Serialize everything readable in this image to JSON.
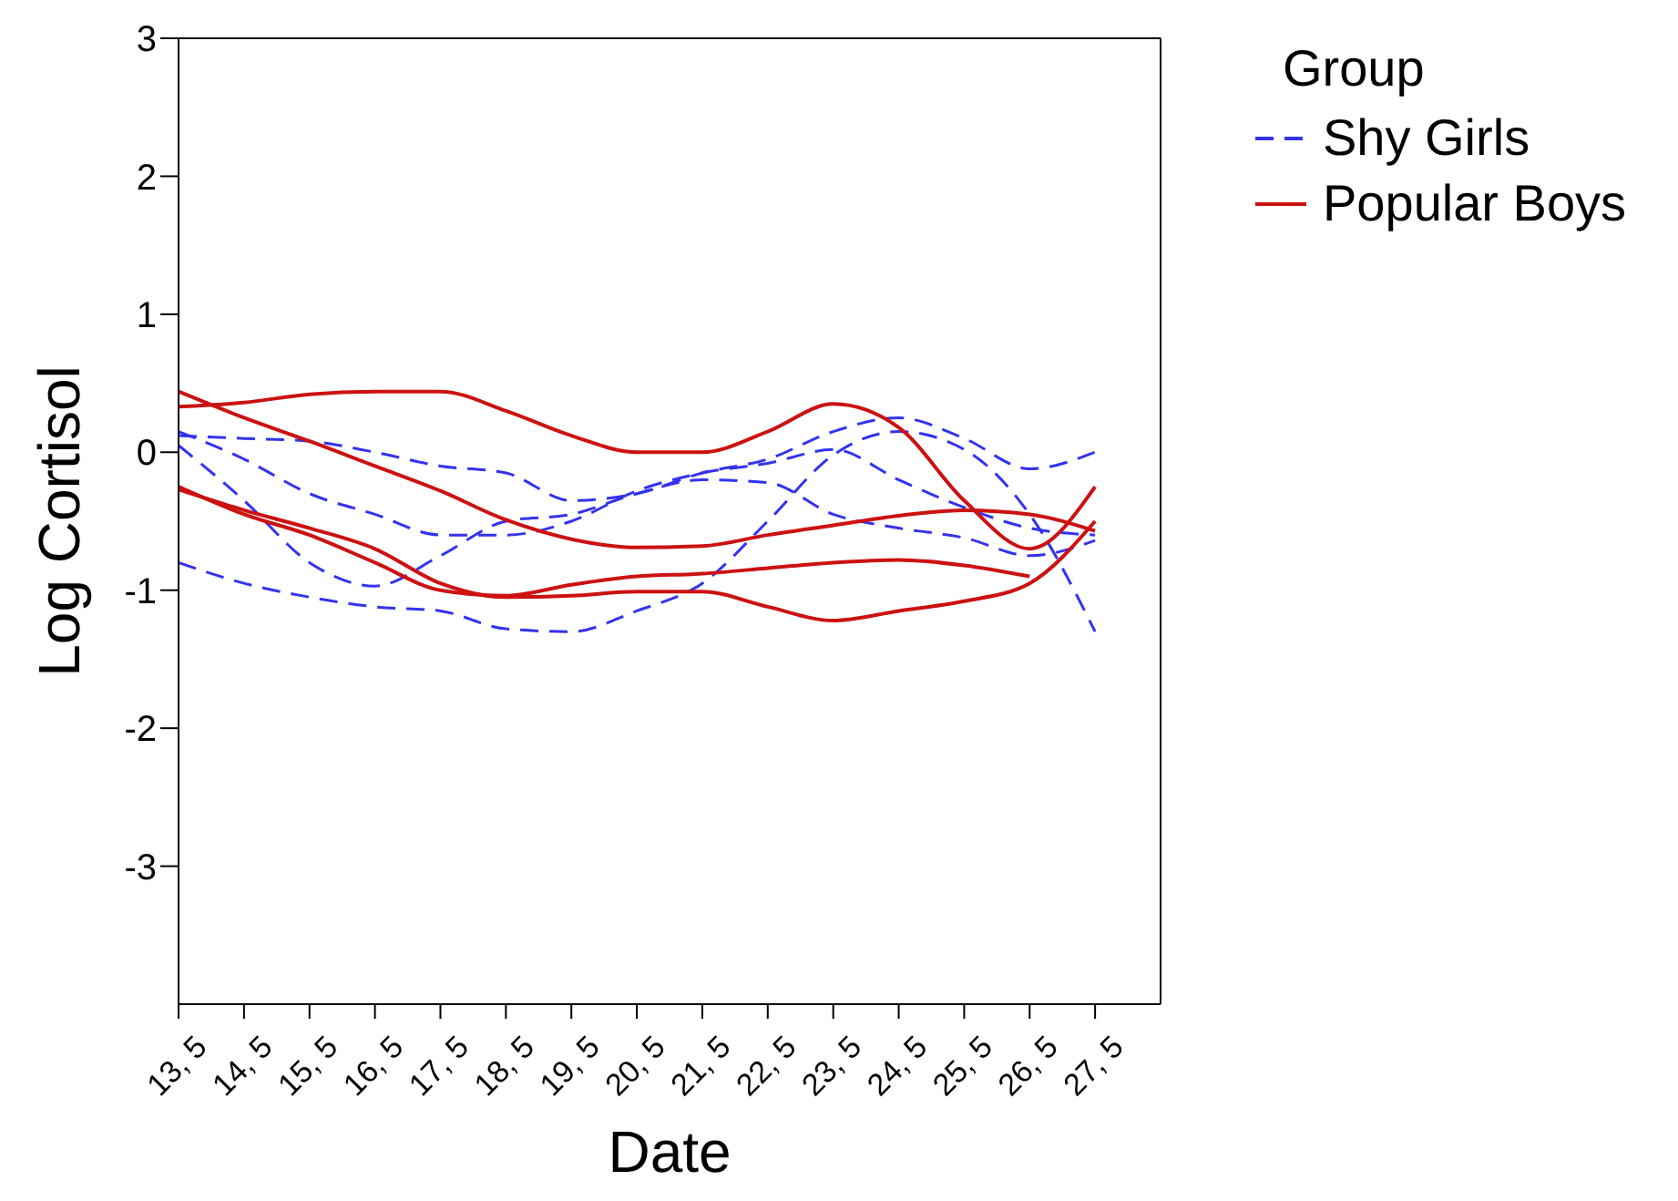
{
  "chart_data": {
    "type": "line",
    "xlabel": "Date",
    "ylabel": "Log Cortisol",
    "legend_title": "Group",
    "legend": "top right",
    "marker": "none",
    "xlim": [
      "--05-13",
      "--05-28"
    ],
    "ylim": [
      -4,
      3
    ],
    "yticks": [
      -3,
      -2,
      -1,
      0,
      1,
      2,
      3
    ],
    "xticks": [
      {
        "value": "--05-13",
        "label": "13, 5"
      },
      {
        "value": "--05-14",
        "label": "14, 5"
      },
      {
        "value": "--05-15",
        "label": "15, 5"
      },
      {
        "value": "--05-16",
        "label": "16, 5"
      },
      {
        "value": "--05-17",
        "label": "17, 5"
      },
      {
        "value": "--05-18",
        "label": "18, 5"
      },
      {
        "value": "--05-19",
        "label": "19, 5"
      },
      {
        "value": "--05-20",
        "label": "20, 5"
      },
      {
        "value": "--05-21",
        "label": "21, 5"
      },
      {
        "value": "--05-22",
        "label": "22, 5"
      },
      {
        "value": "--05-23",
        "label": "23, 5"
      },
      {
        "value": "--05-24",
        "label": "24, 5"
      },
      {
        "value": "--05-25",
        "label": "25, 5"
      },
      {
        "value": "--05-26",
        "label": "26, 5"
      },
      {
        "value": "--05-27",
        "label": "27, 5"
      }
    ],
    "series": [
      {
        "name": "Shy Girls",
        "color": "#3333ee",
        "line_style": "dashed",
        "x": [
          "--05-13",
          "--05-14",
          "--05-15",
          "--05-16",
          "--05-17",
          "--05-18",
          "--05-19",
          "--05-20",
          "--05-21",
          "--05-22",
          "--05-23",
          "--05-24",
          "--05-25",
          "--05-26",
          "--05-27"
        ],
        "values": [
          0.12,
          0.1,
          0.08,
          0.0,
          -0.1,
          -0.15,
          -0.35,
          -0.3,
          -0.15,
          -0.05,
          0.15,
          0.25,
          0.1,
          -0.12,
          0.0
        ]
      },
      {
        "color": "#3333ee",
        "line_style": "dashed",
        "x": [
          "--05-13",
          "--05-14",
          "--05-15",
          "--05-16",
          "--05-17",
          "--05-18",
          "--05-19",
          "--05-20",
          "--05-21",
          "--05-22",
          "--05-23",
          "--05-24",
          "--05-25",
          "--05-26",
          "--05-27"
        ],
        "values": [
          -0.8,
          -0.95,
          -1.05,
          -1.12,
          -1.15,
          -1.28,
          -1.3,
          -1.15,
          -0.95,
          -0.5,
          -0.02,
          0.15,
          0.02,
          -0.45,
          -1.3
        ]
      },
      {
        "color": "#3333ee",
        "line_style": "dashed",
        "x": [
          "--05-13",
          "--05-14",
          "--05-15",
          "--05-16",
          "--05-17",
          "--05-18",
          "--05-19",
          "--05-20",
          "--05-21",
          "--05-22",
          "--05-23",
          "--05-24",
          "--05-25",
          "--05-26",
          "--05-27"
        ],
        "values": [
          0.05,
          -0.35,
          -0.8,
          -0.97,
          -0.75,
          -0.5,
          -0.45,
          -0.3,
          -0.2,
          -0.22,
          -0.45,
          -0.55,
          -0.62,
          -0.75,
          -0.64
        ]
      },
      {
        "color": "#3333ee",
        "line_style": "dashed",
        "x": [
          "--05-13",
          "--05-14",
          "--05-15",
          "--05-16",
          "--05-17",
          "--05-18",
          "--05-19",
          "--05-20",
          "--05-21",
          "--05-22",
          "--05-23",
          "--05-24",
          "--05-25",
          "--05-26",
          "--05-27"
        ],
        "values": [
          0.15,
          -0.05,
          -0.3,
          -0.45,
          -0.6,
          -0.6,
          -0.5,
          -0.28,
          -0.15,
          -0.08,
          0.02,
          -0.2,
          -0.4,
          -0.55,
          -0.6
        ]
      },
      {
        "name": "Popular Boys",
        "color": "#cc1111",
        "line_style": "solid",
        "x": [
          "--05-13",
          "--05-14",
          "--05-15",
          "--05-16",
          "--05-17",
          "--05-18",
          "--05-19",
          "--05-20",
          "--05-21",
          "--05-22",
          "--05-23",
          "--05-24",
          "--05-25",
          "--05-26",
          "--05-27"
        ],
        "values": [
          0.33,
          0.36,
          0.42,
          0.44,
          0.44,
          0.3,
          0.12,
          0.0,
          0.0,
          0.15,
          0.35,
          0.18,
          -0.35,
          -0.7,
          -0.25
        ]
      },
      {
        "color": "#cc1111",
        "line_style": "solid",
        "x": [
          "--05-13",
          "--05-14",
          "--05-15",
          "--05-16",
          "--05-17",
          "--05-18",
          "--05-19",
          "--05-20",
          "--05-21",
          "--05-22",
          "--05-23",
          "--05-24",
          "--05-25",
          "--05-26",
          "--05-27"
        ],
        "values": [
          0.44,
          0.25,
          0.08,
          -0.1,
          -0.28,
          -0.49,
          -0.63,
          -0.69,
          -0.68,
          -0.6,
          -0.53,
          -0.46,
          -0.42,
          -0.45,
          -0.57
        ]
      },
      {
        "color": "#cc1111",
        "line_style": "solid",
        "x": [
          "--05-13",
          "--05-14",
          "--05-15",
          "--05-16",
          "--05-17",
          "--05-18",
          "--05-19",
          "--05-20",
          "--05-21",
          "--05-22",
          "--05-23",
          "--05-24",
          "--05-25",
          "--05-26"
        ],
        "values": [
          -0.25,
          -0.45,
          -0.6,
          -0.8,
          -1.0,
          -1.04,
          -0.96,
          -0.9,
          -0.88,
          -0.84,
          -0.8,
          -0.78,
          -0.82,
          -0.9
        ]
      },
      {
        "color": "#cc1111",
        "line_style": "solid",
        "x": [
          "--05-13",
          "--05-14",
          "--05-15",
          "--05-16",
          "--05-17",
          "--05-18",
          "--05-19",
          "--05-20",
          "--05-21",
          "--05-22",
          "--05-23",
          "--05-24",
          "--05-25",
          "--05-26",
          "--05-27"
        ],
        "values": [
          -0.27,
          -0.42,
          -0.55,
          -0.7,
          -0.95,
          -1.05,
          -1.04,
          -1.01,
          -1.01,
          -1.12,
          -1.22,
          -1.15,
          -1.08,
          -0.95,
          -0.5
        ]
      }
    ]
  }
}
